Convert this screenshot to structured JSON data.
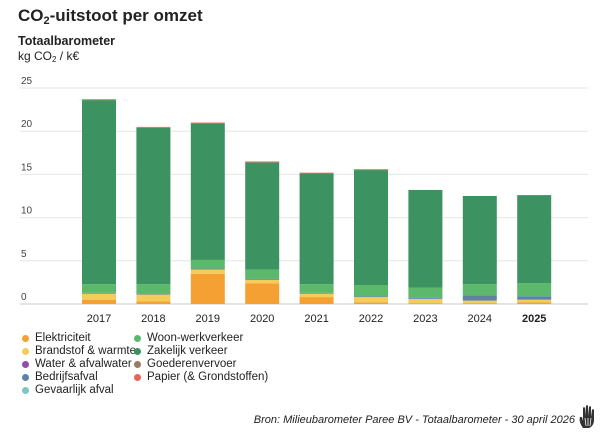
{
  "header": {
    "title_prefix": "CO",
    "title_sub": "2",
    "title_suffix": "-uitstoot per omzet",
    "subtitle": "Totaalbarometer",
    "unit_prefix": "kg CO",
    "unit_sub": "2",
    "unit_suffix": " / k€"
  },
  "legend": [
    {
      "label": "Elektriciteit",
      "color": "#f5a033"
    },
    {
      "label": "Woon-werkverkeer",
      "color": "#5cb86b"
    },
    {
      "label": "Brandstof & warmte",
      "color": "#f4cc5a"
    },
    {
      "label": "Zakelijk verkeer",
      "color": "#3c9260"
    },
    {
      "label": "Water & afvalwater",
      "color": "#8e4fa8"
    },
    {
      "label": "Goederenvervoer",
      "color": "#9a7b63"
    },
    {
      "label": "Bedrijfsafval",
      "color": "#5b83a9"
    },
    {
      "label": "Papier (& Grondstoffen)",
      "color": "#e8635a"
    },
    {
      "label": "Gevaarlijk afval",
      "color": "#7fc6c2"
    }
  ],
  "source": "Bron: Milieubarometer Paree BV - Totaalbarometer - 30 april 2026",
  "chart_data": {
    "type": "bar",
    "stacked": true,
    "categories": [
      "2017",
      "2018",
      "2019",
      "2020",
      "2021",
      "2022",
      "2023",
      "2024",
      "2025"
    ],
    "highlight_category": "2025",
    "ylim": [
      0,
      25
    ],
    "yticks": [
      0,
      5,
      10,
      15,
      20,
      25
    ],
    "grid": true,
    "legend_position": "bottom-left",
    "series": [
      {
        "name": "Elektriciteit",
        "color": "#f5a033",
        "values": [
          0.5,
          0.3,
          3.5,
          2.4,
          0.8,
          0.2,
          0.1,
          0.1,
          0.2
        ]
      },
      {
        "name": "Brandstof & warmte",
        "color": "#f4cc5a",
        "values": [
          0.7,
          0.8,
          0.5,
          0.4,
          0.4,
          0.6,
          0.5,
          0.3,
          0.3
        ]
      },
      {
        "name": "Water & afvalwater",
        "color": "#8e4fa8",
        "values": [
          0.0,
          0.0,
          0.0,
          0.0,
          0.0,
          0.0,
          0.0,
          0.0,
          0.0
        ]
      },
      {
        "name": "Bedrijfsafval",
        "color": "#5b83a9",
        "values": [
          0.1,
          0.1,
          0.1,
          0.1,
          0.1,
          0.1,
          0.1,
          0.6,
          0.4
        ]
      },
      {
        "name": "Gevaarlijk afval",
        "color": "#7fc6c2",
        "values": [
          0.0,
          0.0,
          0.0,
          0.0,
          0.0,
          0.0,
          0.0,
          0.0,
          0.0
        ]
      },
      {
        "name": "Woon-werkverkeer",
        "color": "#5cb86b",
        "values": [
          1.0,
          1.1,
          1.0,
          1.1,
          1.0,
          1.3,
          1.2,
          1.3,
          1.5
        ]
      },
      {
        "name": "Zakelijk verkeer",
        "color": "#3c9260",
        "values": [
          21.3,
          18.1,
          15.8,
          12.4,
          12.8,
          13.3,
          11.3,
          10.2,
          10.2
        ]
      },
      {
        "name": "Goederenvervoer",
        "color": "#9a7b63",
        "values": [
          0.0,
          0.0,
          0.0,
          0.0,
          0.0,
          0.0,
          0.0,
          0.0,
          0.0
        ]
      },
      {
        "name": "Papier (& Grondstoffen)",
        "color": "#e8635a",
        "values": [
          0.1,
          0.1,
          0.1,
          0.1,
          0.1,
          0.1,
          0.0,
          0.0,
          0.0
        ]
      }
    ]
  }
}
